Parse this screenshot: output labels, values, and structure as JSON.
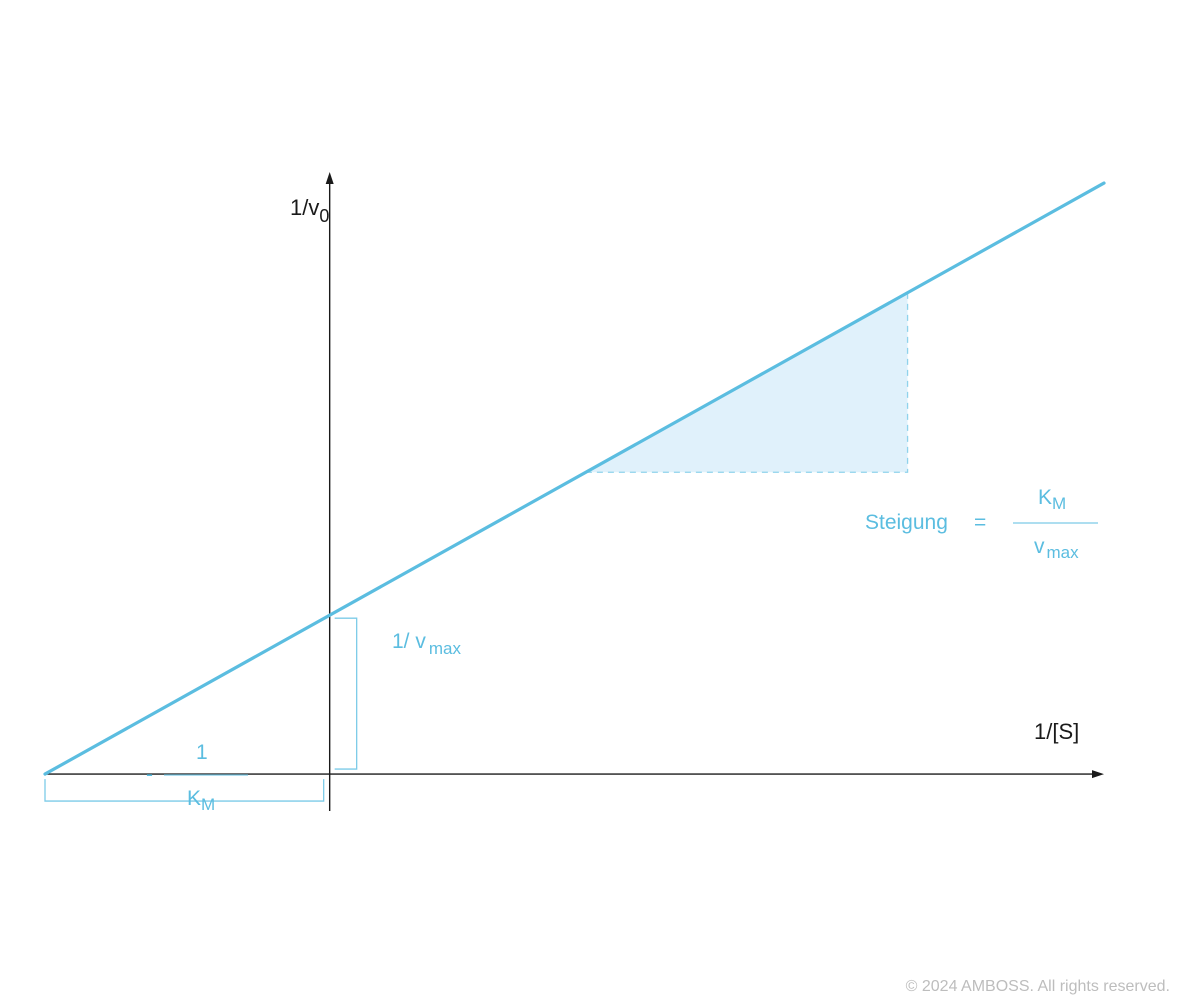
{
  "chart_data": {
    "type": "line",
    "title": "",
    "xlabel": "1/[S]",
    "ylabel": {
      "main": "1/v",
      "sub": "0"
    },
    "xlim": [
      -1,
      2.72
    ],
    "ylim": [
      -0.1,
      1.63
    ],
    "series": [
      {
        "x": [
          -1,
          2.72
        ],
        "y": [
          0,
          1.6
        ]
      }
    ],
    "slope_triangle": {
      "x": [
        0.9,
        2.03
      ],
      "color": "#e0f1fb"
    },
    "annotations": {
      "y_intercept": {
        "prefix": "1/ v",
        "sub": "max"
      },
      "x_intercept": {
        "sign": "-",
        "numerator": "1",
        "denominator": "K",
        "denominator_sub": "M"
      },
      "slope": {
        "label": "Steigung",
        "equals": "=",
        "numerator": "K",
        "numerator_sub": "M",
        "denominator": "v",
        "denominator_sub": "max"
      }
    },
    "grid": false,
    "legend": "none",
    "colors": {
      "line": "#5bbde0",
      "axis": "#1a1a1a",
      "annotation": "#5bbde0",
      "fill": "#e0f1fb"
    }
  },
  "footer": {
    "copyright": "© 2024 AMBOSS. All rights reserved."
  }
}
